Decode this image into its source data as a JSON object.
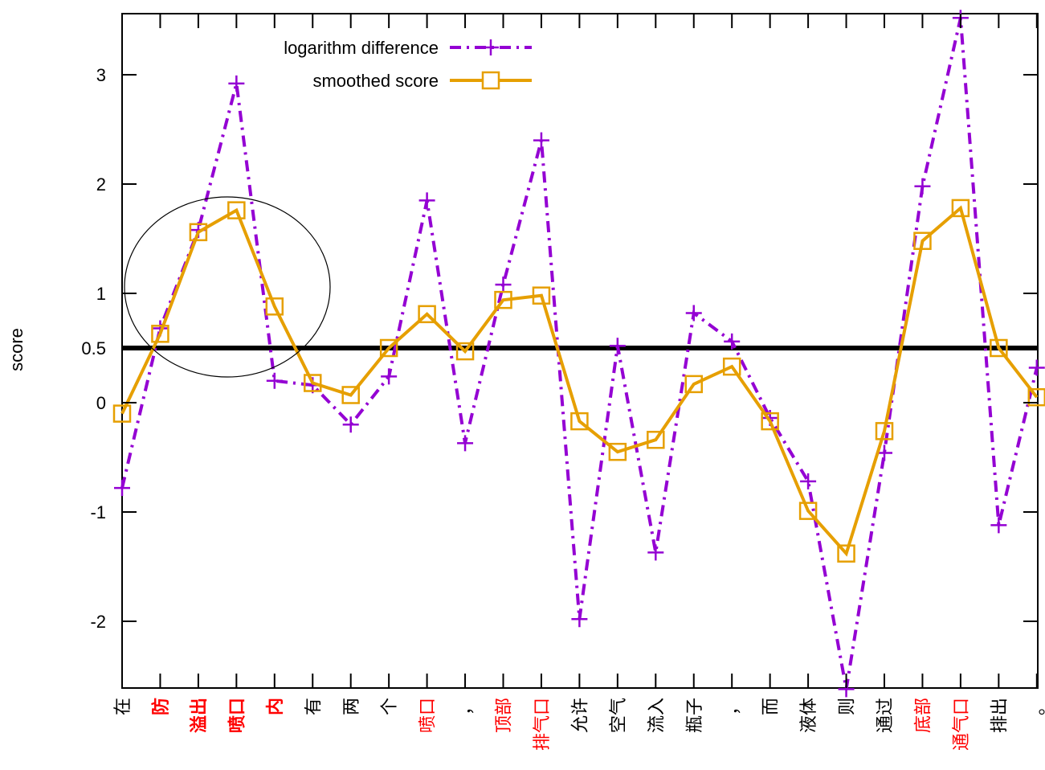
{
  "chart_data": {
    "type": "line",
    "ylabel": "score",
    "xlabel": "",
    "ylim": [
      -2.6,
      3.55
    ],
    "yticks": [
      -2,
      -1,
      0,
      0.5,
      1,
      2,
      3
    ],
    "ytick_labels": [
      "-2",
      "-1",
      "0",
      "0.5",
      "1",
      "2",
      "3"
    ],
    "threshold": 0.5,
    "categories": [
      "在",
      "防",
      "溢出",
      "喷口",
      "内",
      "有",
      "两",
      "个",
      "喷口",
      "，",
      "顶部",
      "排气口",
      "允许",
      "空气",
      "流入",
      "瓶子",
      "，",
      "而",
      "液体",
      "则",
      "通过",
      "底部",
      "通气口",
      "排出",
      "。"
    ],
    "highlight": [
      false,
      true,
      true,
      true,
      true,
      false,
      false,
      false,
      true,
      false,
      true,
      true,
      false,
      false,
      false,
      false,
      false,
      false,
      false,
      false,
      false,
      true,
      true,
      false,
      false
    ],
    "highlight_bold": [
      false,
      true,
      true,
      true,
      true,
      false,
      false,
      false,
      false,
      false,
      false,
      false,
      false,
      false,
      false,
      false,
      false,
      false,
      false,
      false,
      false,
      false,
      false,
      false,
      false
    ],
    "series": [
      {
        "name": "logarithm difference",
        "color": "#9400d3",
        "style": "dash-dot",
        "marker": "plus",
        "values": [
          -0.78,
          0.68,
          1.58,
          2.92,
          0.2,
          0.16,
          -0.2,
          0.24,
          1.85,
          -0.37,
          1.08,
          2.4,
          -1.98,
          0.52,
          -1.37,
          0.82,
          0.56,
          -0.14,
          -0.72,
          -2.62,
          -0.46,
          1.98,
          3.52,
          -1.12,
          0.32
        ]
      },
      {
        "name": "smoothed score",
        "color": "#e69f00",
        "style": "solid",
        "marker": "square",
        "values": [
          -0.1,
          0.63,
          1.56,
          1.76,
          0.88,
          0.18,
          0.07,
          0.5,
          0.81,
          0.47,
          0.94,
          0.98,
          -0.17,
          -0.45,
          -0.34,
          0.17,
          0.33,
          -0.17,
          -0.99,
          -1.38,
          -0.26,
          1.48,
          1.78,
          0.5,
          0.05
        ]
      }
    ],
    "annotation": {
      "type": "ellipse",
      "shape": "circle-outline"
    },
    "legend_position": "top-left",
    "grid": false
  }
}
